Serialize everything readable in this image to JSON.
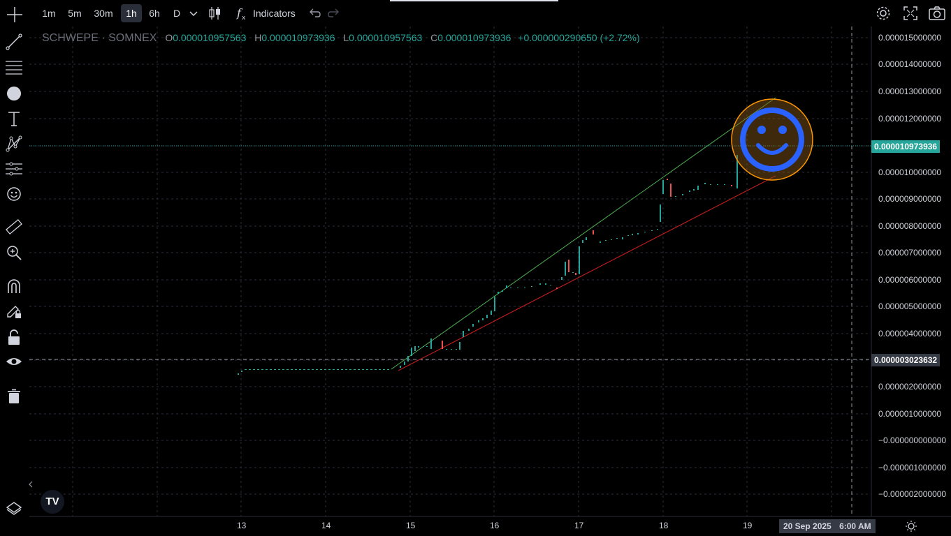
{
  "toolbar": {
    "timeframes": [
      {
        "label": "1m",
        "active": false
      },
      {
        "label": "5m",
        "active": false
      },
      {
        "label": "30m",
        "active": false
      },
      {
        "label": "1h",
        "active": true
      },
      {
        "label": "6h",
        "active": false
      },
      {
        "label": "D",
        "active": false
      }
    ],
    "indicators_label": "Indicators"
  },
  "legend": {
    "symbol": "SCHWEPE · SOMNEX",
    "o_label": "O",
    "o_value": "0.000010957563",
    "h_label": "H",
    "h_value": "0.000010973936",
    "l_label": "L",
    "l_value": "0.000010957563",
    "c_label": "C",
    "c_value": "0.000010973936",
    "change": "+0.000000290650 (+2.72%)"
  },
  "price_axis": {
    "ticks": [
      "0.000015000000",
      "0.000014000000",
      "0.000013000000",
      "0.000012000000",
      "0.000010000000",
      "0.000009000000",
      "0.000008000000",
      "0.000007000000",
      "0.000006000000",
      "0.000005000000",
      "0.000004000000",
      "0.000002000000",
      "0.000001000000",
      "−0.000000000000",
      "−0.000001000000",
      "−0.000002000000"
    ],
    "last_price_tag": "0.000010973936",
    "crosshair_price_tag": "0.000003023632"
  },
  "time_axis": {
    "ticks": [
      "13",
      "14",
      "15",
      "16",
      "17",
      "18",
      "19"
    ],
    "crosshair_date": "20 Sep 2025",
    "crosshair_time": "6:00 AM"
  },
  "colors": {
    "up": "#26a69a",
    "down": "#ef5350",
    "upper_trendline": "#4caf50",
    "lower_trendline": "#b71c1c",
    "smiley": "#2962ff",
    "smiley_ring": "#ff9800",
    "last_price_bg": "#26a69a",
    "crosshair_bg": "#363a45"
  },
  "icons": {
    "sidebar": [
      "crosshair-icon",
      "trendline-icon",
      "fib-icon",
      "brush-icon",
      "text-icon",
      "pattern-icon",
      "forecast-icon",
      "emoji-icon",
      "ruler-icon",
      "zoom-in-icon",
      "magnet-icon",
      "lock-drawings-icon",
      "lock-icon",
      "eye-icon",
      "trash-icon"
    ],
    "bottom": [
      "layers-icon",
      "tradingview-logo",
      "collapse-icon"
    ],
    "top_right": [
      "settings-icon",
      "fullscreen-icon",
      "camera-icon"
    ]
  },
  "chart_data": {
    "type": "candlestick",
    "y_unit": "price",
    "candles_note_excluded": true,
    "trendlines": [
      {
        "name": "",
        "color": "upper"
      },
      {
        "name": "",
        "color": "lower"
      }
    ]
  },
  "tv_logo_text": "TV"
}
